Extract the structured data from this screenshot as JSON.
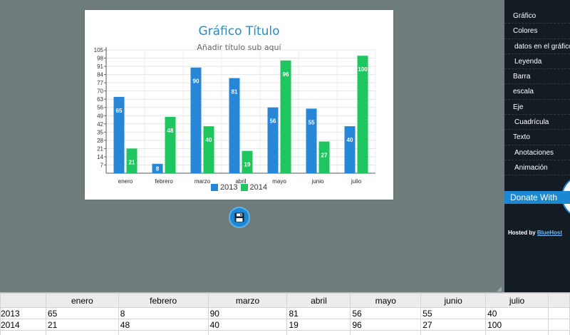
{
  "chart": {
    "title": "Gráfico Título",
    "subtitle": "Añadir título sub aquí"
  },
  "chart_data": {
    "type": "bar",
    "title": "Gráfico Título",
    "subtitle": "Añadir título sub aquí",
    "categories": [
      "enero",
      "febrero",
      "marzo",
      "abril",
      "mayo",
      "junio",
      "julio"
    ],
    "series": [
      {
        "name": "2013",
        "color": "#2787d6",
        "values": [
          65,
          8,
          90,
          81,
          56,
          55,
          40
        ]
      },
      {
        "name": "2014",
        "color": "#1fc55e",
        "values": [
          21,
          48,
          40,
          19,
          96,
          27,
          100
        ]
      }
    ],
    "ylim": [
      0,
      105
    ],
    "yticks": [
      7,
      14,
      21,
      28,
      35,
      42,
      49,
      56,
      63,
      70,
      77,
      84,
      91,
      98,
      105
    ],
    "xlabel": "",
    "ylabel": "",
    "grid": true,
    "legend": "bottom-center"
  },
  "sidebar": {
    "items": [
      "Gráfico",
      "Colores",
      "datos en el gráfico",
      "Leyenda",
      "Barra",
      "escala",
      "Eje",
      "Cuadrícula",
      "Texto",
      "Anotaciones",
      "Animación"
    ],
    "donate_label": "Donate With",
    "hosted_prefix": "Hosted by",
    "hosted_link": "BlueHost"
  },
  "table": {
    "headers": [
      "",
      "enero",
      "febrero",
      "marzo",
      "abril",
      "mayo",
      "junio",
      "julio",
      ""
    ],
    "rows": [
      [
        "2013",
        "65",
        "8",
        "90",
        "81",
        "56",
        "55",
        "40",
        ""
      ],
      [
        "2014",
        "21",
        "48",
        "40",
        "19",
        "96",
        "27",
        "100",
        ""
      ],
      [
        "",
        "",
        "",
        "",
        "",
        "",
        "",
        "",
        ""
      ]
    ]
  },
  "icons": {
    "save": "floppy-disk-icon"
  }
}
